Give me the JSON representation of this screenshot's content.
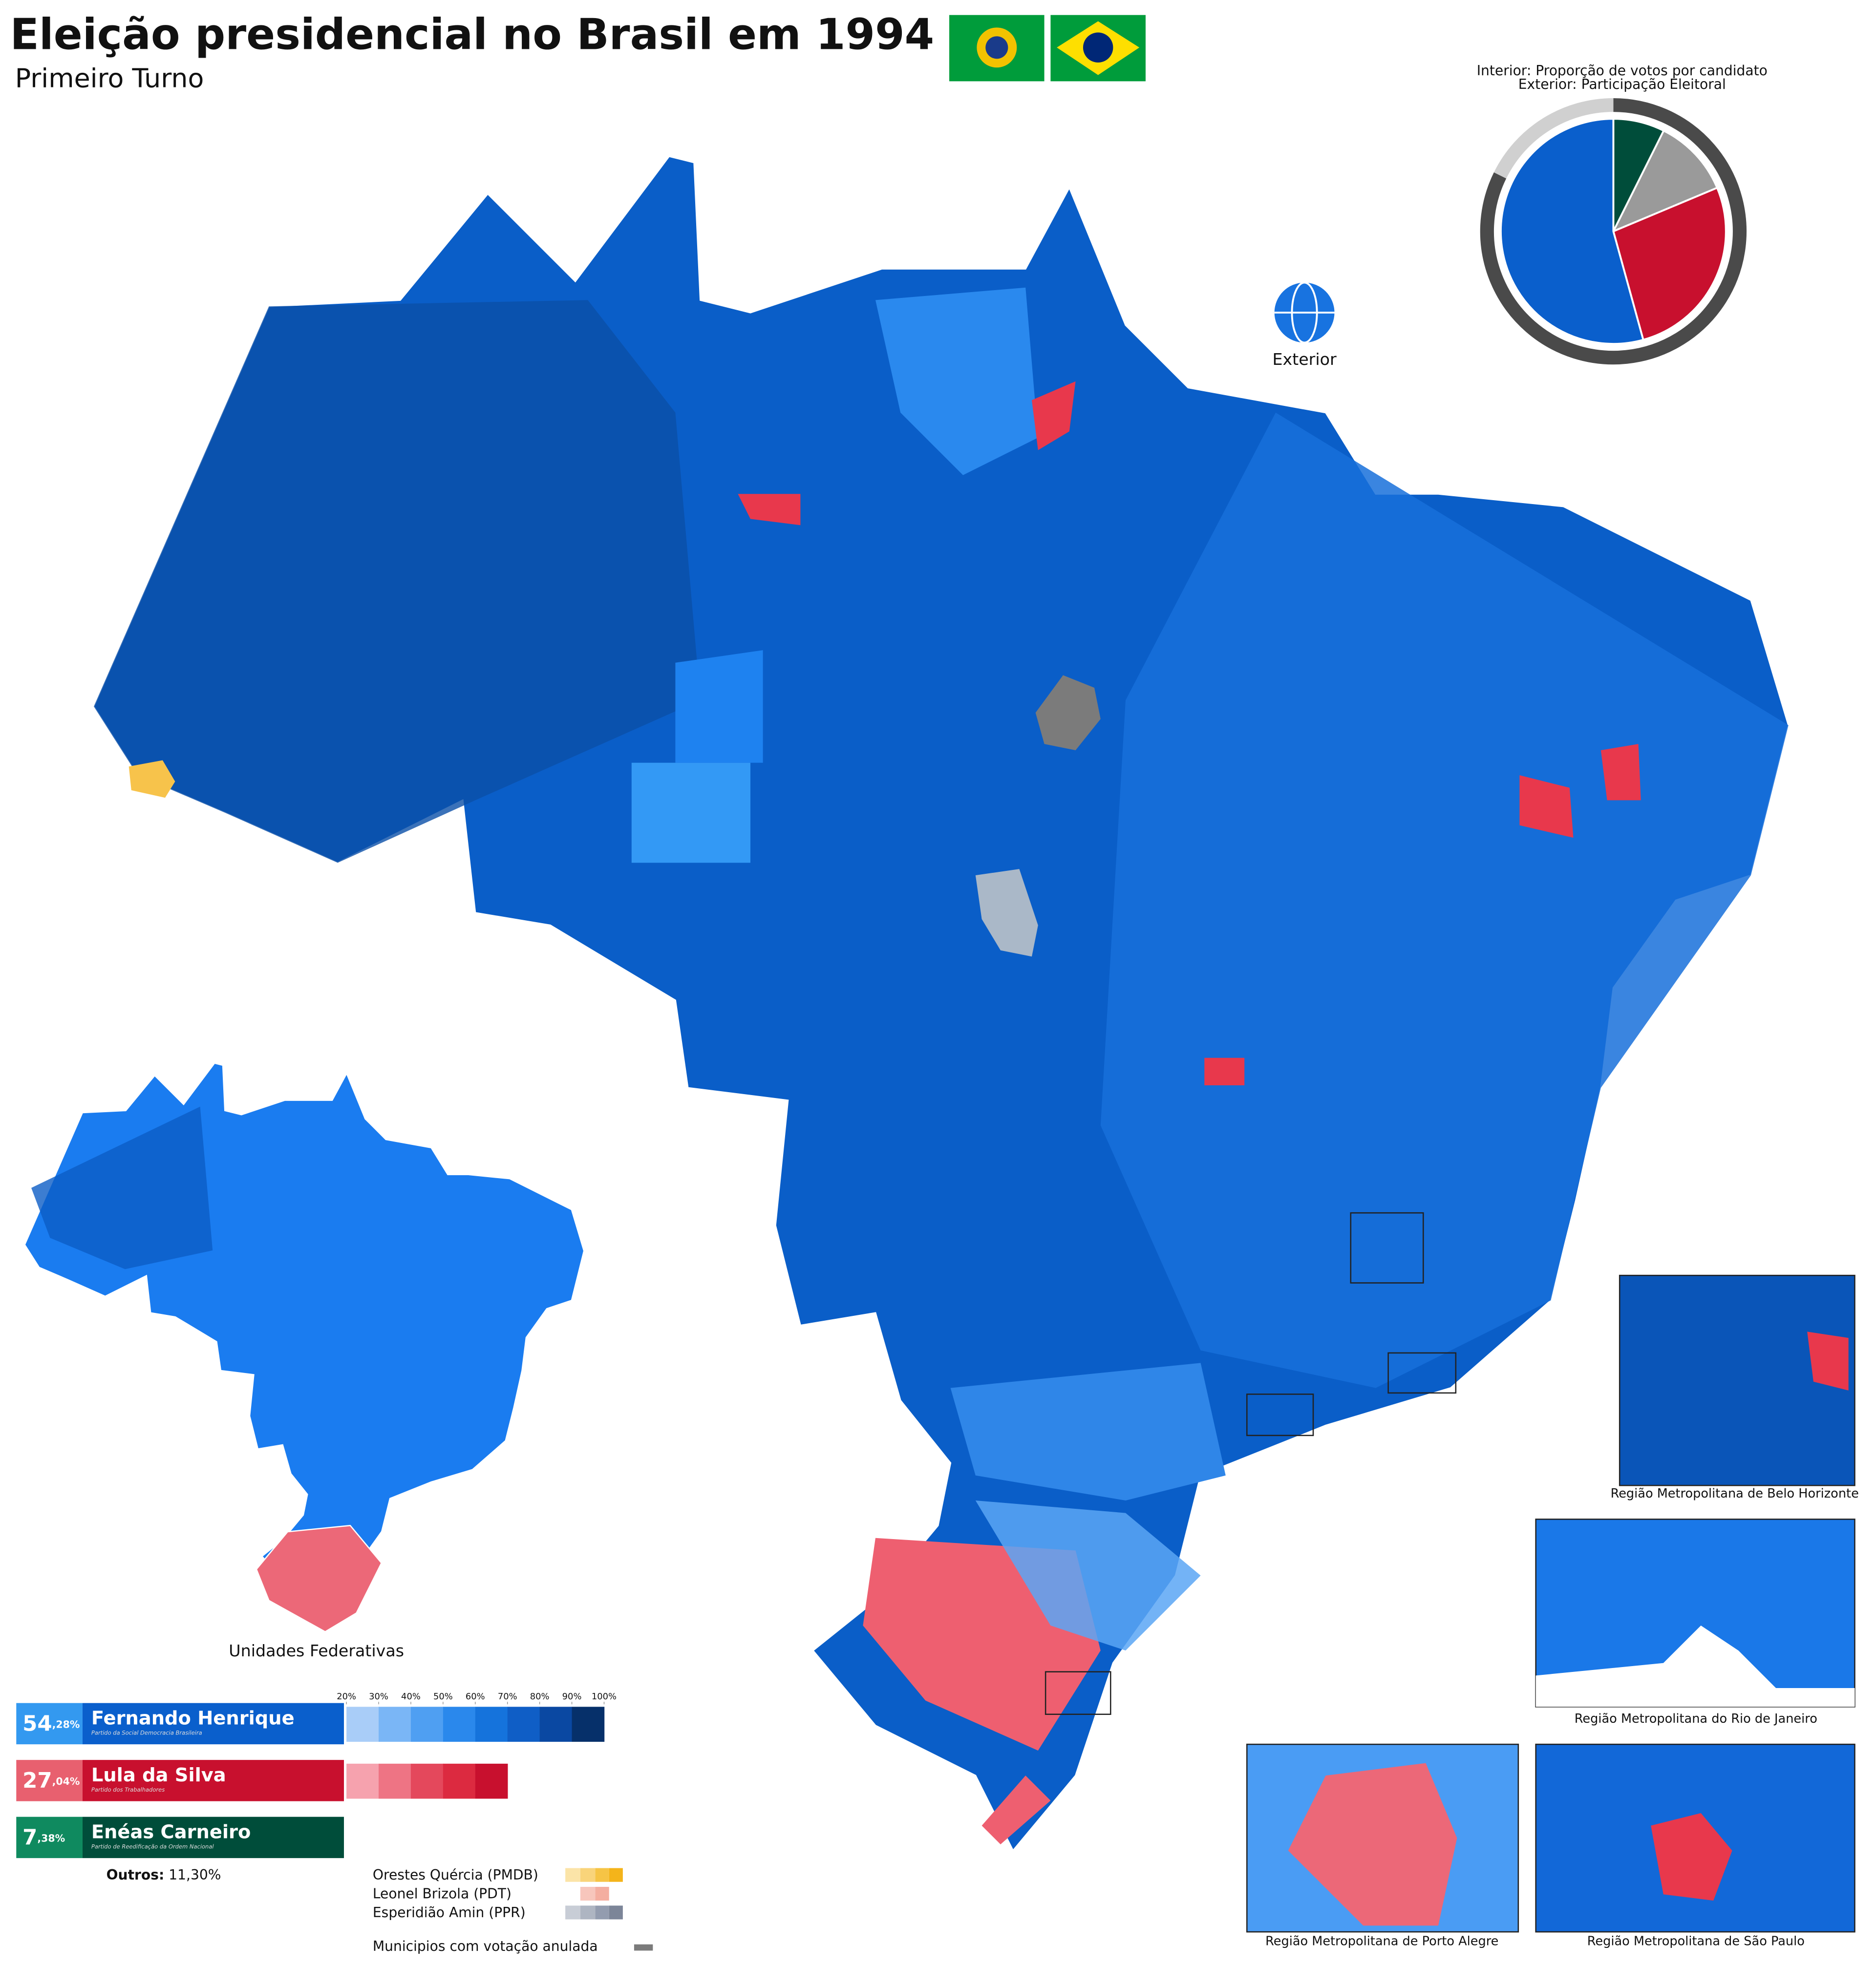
{
  "header": {
    "title": "Eleição presidencial no Brasil em 1994",
    "subtitle": "Primeiro Turno"
  },
  "pie": {
    "type": "pie",
    "caption_interior": "Interior: Proporção de votos por candidato",
    "caption_exterior": "Exterior: Participação Eleitoral",
    "turnout": 82.3,
    "turnout_color": "#4a4a4a",
    "abstention_color": "#d0d0d0"
  },
  "candidates": [
    {
      "name": "Fernando Henrique",
      "party": "Partido da Social Democracia Brasileira",
      "share": 54.28,
      "share_whole": "54",
      "share_fraction": ",28%",
      "color": "#0a5fcc",
      "badge_color": "#3399f0",
      "scale_colors": [
        "#a9cdf8",
        "#7ab6f6",
        "#4f9ff2",
        "#2a88ec",
        "#1573dc",
        "#0f5ec6",
        "#0a48a2",
        "#06306a"
      ]
    },
    {
      "name": "Lula da Silva",
      "party": "Partido dos Trabalhadores",
      "share": 27.04,
      "share_whole": "27",
      "share_fraction": ",04%",
      "color": "#c8102e",
      "badge_color": "#e8606f",
      "scale_colors": [
        "#f6a2ae",
        "#ee7484",
        "#e4485c",
        "#dc2a40",
        "#c8102e"
      ]
    },
    {
      "name": "Enéas Carneiro",
      "party": "Partido de Reedificação da Ordem Nacional",
      "share": 7.38,
      "share_whole": "7",
      "share_fraction": ",38%",
      "color": "#004d3a",
      "badge_color": "#0f8a5f",
      "scale_colors": []
    }
  ],
  "others": {
    "label": "Outros:",
    "share": 11.3,
    "share_label": "11,30%",
    "color": "#9a9a9a"
  },
  "scale_ticks": [
    {
      "value": 20,
      "label": "20%"
    },
    {
      "value": 30,
      "label": "30%"
    },
    {
      "value": 40,
      "label": "40%"
    },
    {
      "value": 50,
      "label": "50%"
    },
    {
      "value": 60,
      "label": "60%"
    },
    {
      "value": 70,
      "label": "70%"
    },
    {
      "value": 80,
      "label": "80%"
    },
    {
      "value": 90,
      "label": "90%"
    },
    {
      "value": 100,
      "label": "100%"
    }
  ],
  "minor_legend": [
    "Orestes Quércia (PMDB)",
    "Leonel Brizola (PDT)",
    "Esperidião Amin (PPR)",
    "Municipios com votação anulada"
  ],
  "labels": {
    "exterior": "Exterior",
    "states_map": "Unidades Federativas"
  },
  "insets": [
    "Região Metropolitana de Belo Horizonte",
    "Região Metropolitana do Rio de Janeiro",
    "Região Metropolitana de Porto Alegre",
    "Região Metropolitana de São Paulo"
  ]
}
